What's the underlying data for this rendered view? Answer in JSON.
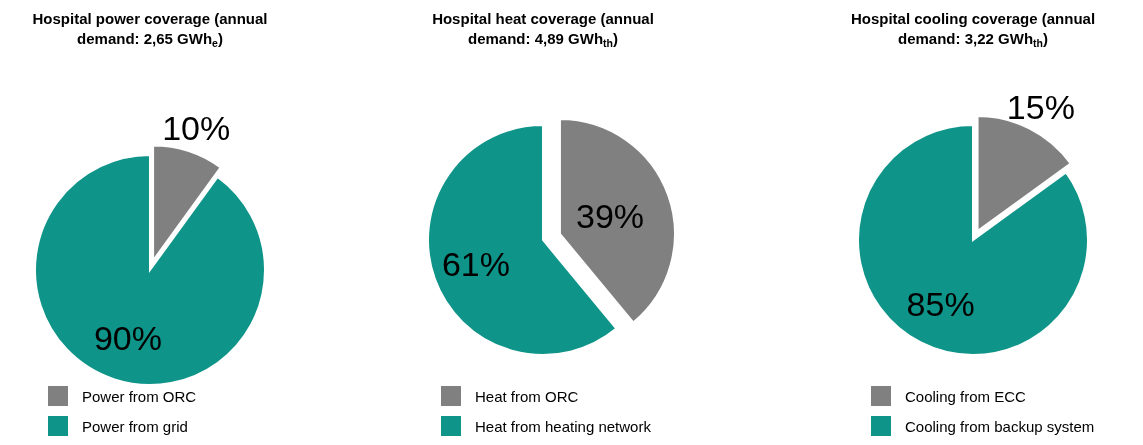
{
  "chart_data": [
    {
      "type": "pie",
      "title": "Hospital power coverage (annual demand: 2,65 GWh$_{e}$)",
      "categories": [
        "Power from ORC",
        "Power from grid"
      ],
      "values": [
        10,
        90
      ],
      "value_labels": [
        "10%",
        "90%"
      ],
      "colors": [
        "#808080",
        "#0e9488"
      ],
      "legend": "bottom"
    },
    {
      "type": "pie",
      "title": "Hospital heat coverage (annual demand: 4,89 GWh$_{th}$)",
      "categories": [
        "Heat from ORC",
        "Heat from heating network"
      ],
      "values": [
        39,
        61
      ],
      "value_labels": [
        "39%",
        "61%"
      ],
      "colors": [
        "#808080",
        "#0e9488"
      ],
      "legend": "bottom"
    },
    {
      "type": "pie",
      "title": "Hospital cooling coverage (annual demand: 3,22 GWh$_{th}$)",
      "categories": [
        "Cooling from ECC",
        "Cooling from backup system"
      ],
      "values": [
        15,
        85
      ],
      "value_labels": [
        "15%",
        "85%"
      ],
      "colors": [
        "#808080",
        "#0e9488"
      ],
      "legend": "bottom"
    }
  ]
}
